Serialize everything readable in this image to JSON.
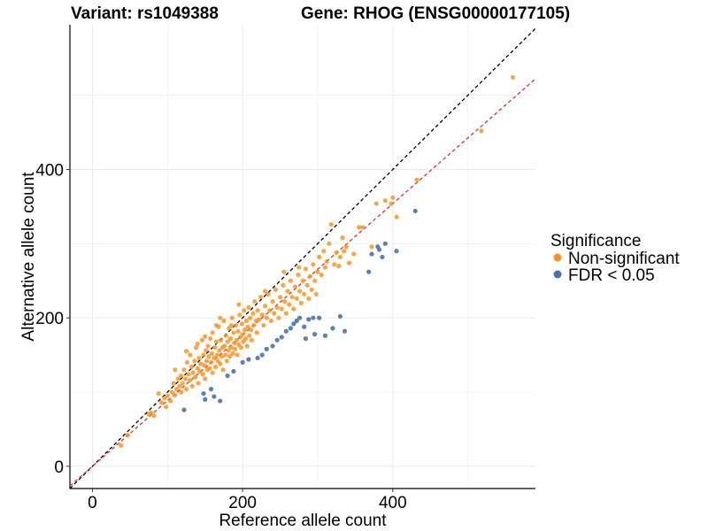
{
  "chart_data": {
    "type": "scatter",
    "title_left": "Variant: rs1049388",
    "title_right": "Gene: RHOG (ENSG00000177105)",
    "xlabel": "Reference allele count",
    "ylabel": "Alternative allele count",
    "xlim": [
      -30,
      590
    ],
    "ylim": [
      -30,
      595
    ],
    "xticks": [
      0,
      200,
      400
    ],
    "yticks": [
      0,
      200,
      400
    ],
    "x_minor_gridlines": [
      100,
      300,
      500
    ],
    "y_minor_gridlines": [
      100,
      300,
      500
    ],
    "grid": true,
    "legend": {
      "title": "Significance",
      "position": "right",
      "entries": [
        {
          "label": "Non-significant",
          "color": "#F8931D"
        },
        {
          "label": "FDR < 0.05",
          "color": "#4A72A8"
        }
      ]
    },
    "reference_lines": [
      {
        "name": "identity",
        "style": "dashed",
        "color": "#000000",
        "slope": 1.0,
        "intercept": 0
      },
      {
        "name": "fit",
        "style": "dashed",
        "color": "#E0302A",
        "slope": 0.885,
        "intercept": 0
      }
    ],
    "series": [
      {
        "name": "Non-significant",
        "color": "#F8931D",
        "points": [
          [
            38,
            28
          ],
          [
            47,
            42
          ],
          [
            78,
            72
          ],
          [
            82,
            68
          ],
          [
            88,
            98
          ],
          [
            92,
            86
          ],
          [
            96,
            92
          ],
          [
            98,
            80
          ],
          [
            100,
            95
          ],
          [
            104,
            88
          ],
          [
            106,
            100
          ],
          [
            108,
            112
          ],
          [
            110,
            96
          ],
          [
            112,
            104
          ],
          [
            114,
            118
          ],
          [
            116,
            108
          ],
          [
            118,
            122
          ],
          [
            118,
            100
          ],
          [
            120,
            112
          ],
          [
            122,
            130
          ],
          [
            124,
            118
          ],
          [
            125,
            104
          ],
          [
            126,
            140
          ],
          [
            128,
            124
          ],
          [
            130,
            116
          ],
          [
            130,
            150
          ],
          [
            132,
            134
          ],
          [
            133,
            108
          ],
          [
            134,
            126
          ],
          [
            136,
            142
          ],
          [
            137,
            120
          ],
          [
            138,
            160
          ],
          [
            140,
            132
          ],
          [
            141,
            112
          ],
          [
            142,
            146
          ],
          [
            143,
            128
          ],
          [
            144,
            138
          ],
          [
            146,
            170
          ],
          [
            147,
            124
          ],
          [
            148,
            150
          ],
          [
            149,
            136
          ],
          [
            150,
            118
          ],
          [
            151,
            156
          ],
          [
            152,
            142
          ],
          [
            153,
            130
          ],
          [
            154,
            162
          ],
          [
            155,
            148
          ],
          [
            156,
            132
          ],
          [
            157,
            172
          ],
          [
            158,
            140
          ],
          [
            159,
            152
          ],
          [
            160,
            126
          ],
          [
            160,
            180
          ],
          [
            162,
            146
          ],
          [
            163,
            160
          ],
          [
            164,
            134
          ],
          [
            165,
            168
          ],
          [
            166,
            150
          ],
          [
            167,
            142
          ],
          [
            168,
            188
          ],
          [
            169,
            156
          ],
          [
            170,
            138
          ],
          [
            171,
            170
          ],
          [
            172,
            148
          ],
          [
            173,
            160
          ],
          [
            174,
            130
          ],
          [
            175,
            196
          ],
          [
            176,
            162
          ],
          [
            177,
            150
          ],
          [
            178,
            176
          ],
          [
            179,
            142
          ],
          [
            180,
            168
          ],
          [
            181,
            156
          ],
          [
            182,
            186
          ],
          [
            183,
            148
          ],
          [
            184,
            172
          ],
          [
            185,
            160
          ],
          [
            186,
            200
          ],
          [
            187,
            152
          ],
          [
            188,
            180
          ],
          [
            189,
            166
          ],
          [
            190,
            158
          ],
          [
            191,
            190
          ],
          [
            192,
            170
          ],
          [
            193,
            150
          ],
          [
            194,
            182
          ],
          [
            195,
            164
          ],
          [
            196,
            204
          ],
          [
            197,
            174
          ],
          [
            198,
            160
          ],
          [
            199,
            192
          ],
          [
            200,
            178
          ],
          [
            201,
            168
          ],
          [
            202,
            210
          ],
          [
            203,
            184
          ],
          [
            204,
            172
          ],
          [
            205,
            196
          ],
          [
            206,
            162
          ],
          [
            207,
            188
          ],
          [
            208,
            214
          ],
          [
            209,
            176
          ],
          [
            210,
            200
          ],
          [
            211,
            184
          ],
          [
            212,
            170
          ],
          [
            214,
            206
          ],
          [
            215,
            190
          ],
          [
            216,
            222
          ],
          [
            218,
            196
          ],
          [
            219,
            180
          ],
          [
            220,
            210
          ],
          [
            222,
            198
          ],
          [
            224,
            228
          ],
          [
            226,
            204
          ],
          [
            228,
            190
          ],
          [
            230,
            216
          ],
          [
            232,
            200
          ],
          [
            234,
            232
          ],
          [
            236,
            210
          ],
          [
            238,
            196
          ],
          [
            240,
            222
          ],
          [
            242,
            206
          ],
          [
            244,
            238
          ],
          [
            246,
            214
          ],
          [
            248,
            200
          ],
          [
            250,
            228
          ],
          [
            252,
            212
          ],
          [
            254,
            244
          ],
          [
            256,
            222
          ],
          [
            258,
            206
          ],
          [
            260,
            236
          ],
          [
            262,
            218
          ],
          [
            264,
            250
          ],
          [
            266,
            228
          ],
          [
            268,
            212
          ],
          [
            270,
            242
          ],
          [
            272,
            226
          ],
          [
            274,
            258
          ],
          [
            276,
            236
          ],
          [
            278,
            220
          ],
          [
            280,
            250
          ],
          [
            282,
            232
          ],
          [
            284,
            266
          ],
          [
            286,
            244
          ],
          [
            288,
            226
          ],
          [
            290,
            256
          ],
          [
            292,
            238
          ],
          [
            294,
            272
          ],
          [
            296,
            250
          ],
          [
            298,
            232
          ],
          [
            300,
            262
          ],
          [
            302,
            282
          ],
          [
            305,
            258
          ],
          [
            308,
            290
          ],
          [
            310,
            268
          ],
          [
            312,
            276
          ],
          [
            315,
            300
          ],
          [
            318,
            326
          ],
          [
            322,
            272
          ],
          [
            325,
            288
          ],
          [
            328,
            270
          ],
          [
            330,
            282
          ],
          [
            333,
            308
          ],
          [
            335,
            290
          ],
          [
            338,
            296
          ],
          [
            342,
            274
          ],
          [
            348,
            286
          ],
          [
            355,
            322
          ],
          [
            360,
            322
          ],
          [
            372,
            296
          ],
          [
            378,
            354
          ],
          [
            390,
            358
          ],
          [
            398,
            354
          ],
          [
            400,
            362
          ],
          [
            405,
            336
          ],
          [
            432,
            386
          ],
          [
            518,
            452
          ],
          [
            560,
            524
          ],
          [
            75,
            70
          ],
          [
            185,
            190
          ],
          [
            170,
            200
          ],
          [
            125,
            155
          ],
          [
            110,
            130
          ],
          [
            275,
            268
          ],
          [
            255,
            262
          ],
          [
            230,
            236
          ],
          [
            150,
            175
          ],
          [
            165,
            190
          ],
          [
            195,
            218
          ],
          [
            140,
            165
          ]
        ]
      },
      {
        "name": "FDR < 0.05",
        "color": "#4A72A8",
        "points": [
          [
            122,
            76
          ],
          [
            148,
            98
          ],
          [
            150,
            90
          ],
          [
            158,
            104
          ],
          [
            162,
            94
          ],
          [
            170,
            88
          ],
          [
            180,
            122
          ],
          [
            188,
            128
          ],
          [
            200,
            140
          ],
          [
            208,
            144
          ],
          [
            220,
            146
          ],
          [
            226,
            150
          ],
          [
            232,
            158
          ],
          [
            240,
            162
          ],
          [
            246,
            170
          ],
          [
            252,
            174
          ],
          [
            258,
            182
          ],
          [
            264,
            186
          ],
          [
            268,
            192
          ],
          [
            272,
            196
          ],
          [
            276,
            200
          ],
          [
            282,
            188
          ],
          [
            288,
            198
          ],
          [
            294,
            200
          ],
          [
            302,
            200
          ],
          [
            310,
            176
          ],
          [
            320,
            186
          ],
          [
            330,
            202
          ],
          [
            336,
            182
          ],
          [
            372,
            286
          ],
          [
            380,
            296
          ],
          [
            382,
            292
          ],
          [
            386,
            282
          ],
          [
            390,
            300
          ],
          [
            405,
            290
          ],
          [
            430,
            344
          ],
          [
            368,
            262
          ],
          [
            296,
            178
          ],
          [
            284,
            172
          ]
        ]
      }
    ]
  }
}
